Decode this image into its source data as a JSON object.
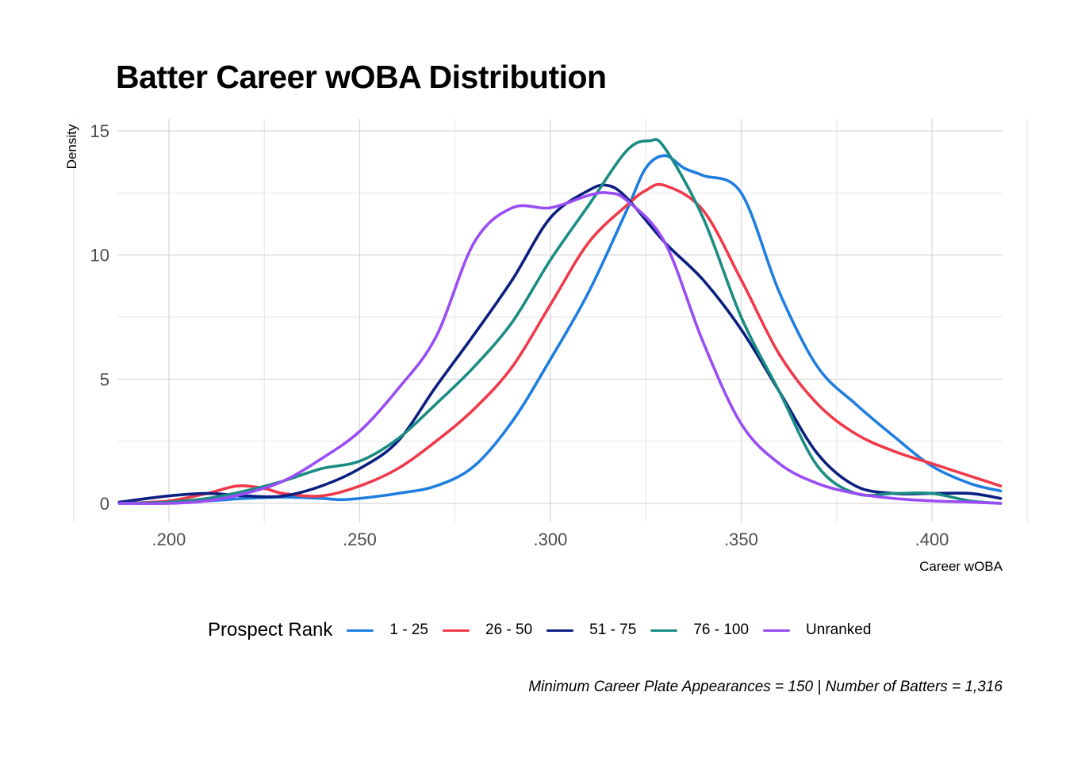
{
  "chart_data": {
    "type": "line",
    "title": "Batter Career wOBA Distribution",
    "xlabel": "Career wOBA",
    "ylabel": "Density",
    "caption": "Minimum Career Plate Appearances = 150 | Number of Batters = 1,316",
    "legend_title": "Prospect Rank",
    "legend_position": "bottom",
    "grid": true,
    "xlim": [
      0.1865,
      0.4185
    ],
    "ylim": [
      0,
      15
    ],
    "x_ticks": [
      0.2,
      0.25,
      0.3,
      0.35,
      0.4
    ],
    "x_tick_labels": [
      ".200",
      ".250",
      ".300",
      ".350",
      ".400"
    ],
    "y_ticks": [
      0,
      5,
      10,
      15
    ],
    "y_tick_labels": [
      "0",
      "5",
      "10",
      "15"
    ],
    "series": [
      {
        "name": "1 - 25",
        "color": "#1e7ee0",
        "x": [
          0.187,
          0.2,
          0.21,
          0.22,
          0.23,
          0.24,
          0.245,
          0.25,
          0.26,
          0.27,
          0.28,
          0.29,
          0.3,
          0.31,
          0.32,
          0.325,
          0.33,
          0.335,
          0.34,
          0.35,
          0.36,
          0.37,
          0.38,
          0.39,
          0.4,
          0.41,
          0.418
        ],
        "y": [
          0.0,
          0.05,
          0.1,
          0.2,
          0.25,
          0.2,
          0.15,
          0.2,
          0.4,
          0.7,
          1.5,
          3.3,
          5.8,
          8.5,
          11.8,
          13.5,
          14.0,
          13.5,
          13.2,
          12.5,
          8.5,
          5.5,
          4.0,
          2.7,
          1.5,
          0.8,
          0.5
        ]
      },
      {
        "name": "26 - 50",
        "color": "#f03a4a",
        "x": [
          0.187,
          0.2,
          0.21,
          0.218,
          0.225,
          0.23,
          0.24,
          0.25,
          0.26,
          0.27,
          0.28,
          0.29,
          0.3,
          0.31,
          0.32,
          0.325,
          0.33,
          0.34,
          0.35,
          0.36,
          0.37,
          0.38,
          0.39,
          0.4,
          0.41,
          0.418
        ],
        "y": [
          0.0,
          0.1,
          0.4,
          0.7,
          0.6,
          0.4,
          0.3,
          0.7,
          1.4,
          2.5,
          3.8,
          5.5,
          8.0,
          10.5,
          12.0,
          12.6,
          12.8,
          11.8,
          9.0,
          6.0,
          4.0,
          2.8,
          2.1,
          1.6,
          1.1,
          0.7
        ]
      },
      {
        "name": "51 - 75",
        "color": "#0b1f80",
        "x": [
          0.187,
          0.2,
          0.21,
          0.22,
          0.23,
          0.24,
          0.25,
          0.26,
          0.27,
          0.28,
          0.29,
          0.3,
          0.31,
          0.315,
          0.32,
          0.33,
          0.34,
          0.35,
          0.36,
          0.37,
          0.38,
          0.39,
          0.4,
          0.41,
          0.418
        ],
        "y": [
          0.05,
          0.3,
          0.4,
          0.3,
          0.3,
          0.7,
          1.4,
          2.5,
          4.7,
          6.8,
          9.0,
          11.5,
          12.6,
          12.8,
          12.3,
          10.5,
          9.0,
          7.0,
          4.5,
          2.0,
          0.7,
          0.4,
          0.4,
          0.4,
          0.2
        ]
      },
      {
        "name": "76 - 100",
        "color": "#1a8c84",
        "x": [
          0.187,
          0.2,
          0.21,
          0.22,
          0.23,
          0.24,
          0.25,
          0.26,
          0.27,
          0.28,
          0.29,
          0.3,
          0.31,
          0.32,
          0.326,
          0.33,
          0.34,
          0.35,
          0.36,
          0.37,
          0.38,
          0.39,
          0.4,
          0.41,
          0.418
        ],
        "y": [
          0.0,
          0.05,
          0.2,
          0.5,
          0.9,
          1.4,
          1.7,
          2.6,
          4.0,
          5.5,
          7.3,
          9.8,
          12.0,
          14.2,
          14.6,
          14.3,
          11.5,
          7.5,
          4.5,
          1.5,
          0.4,
          0.4,
          0.4,
          0.1,
          0.0
        ]
      },
      {
        "name": "Unranked",
        "color": "#9a4cf5",
        "x": [
          0.187,
          0.2,
          0.21,
          0.22,
          0.23,
          0.24,
          0.25,
          0.26,
          0.27,
          0.28,
          0.29,
          0.3,
          0.31,
          0.315,
          0.32,
          0.33,
          0.34,
          0.35,
          0.36,
          0.37,
          0.38,
          0.39,
          0.4,
          0.41,
          0.418
        ],
        "y": [
          0.0,
          0.0,
          0.1,
          0.4,
          0.9,
          1.8,
          2.9,
          4.6,
          6.7,
          10.5,
          11.9,
          11.9,
          12.4,
          12.5,
          12.2,
          10.5,
          6.5,
          3.2,
          1.6,
          0.8,
          0.4,
          0.2,
          0.1,
          0.05,
          0.0
        ]
      }
    ]
  }
}
